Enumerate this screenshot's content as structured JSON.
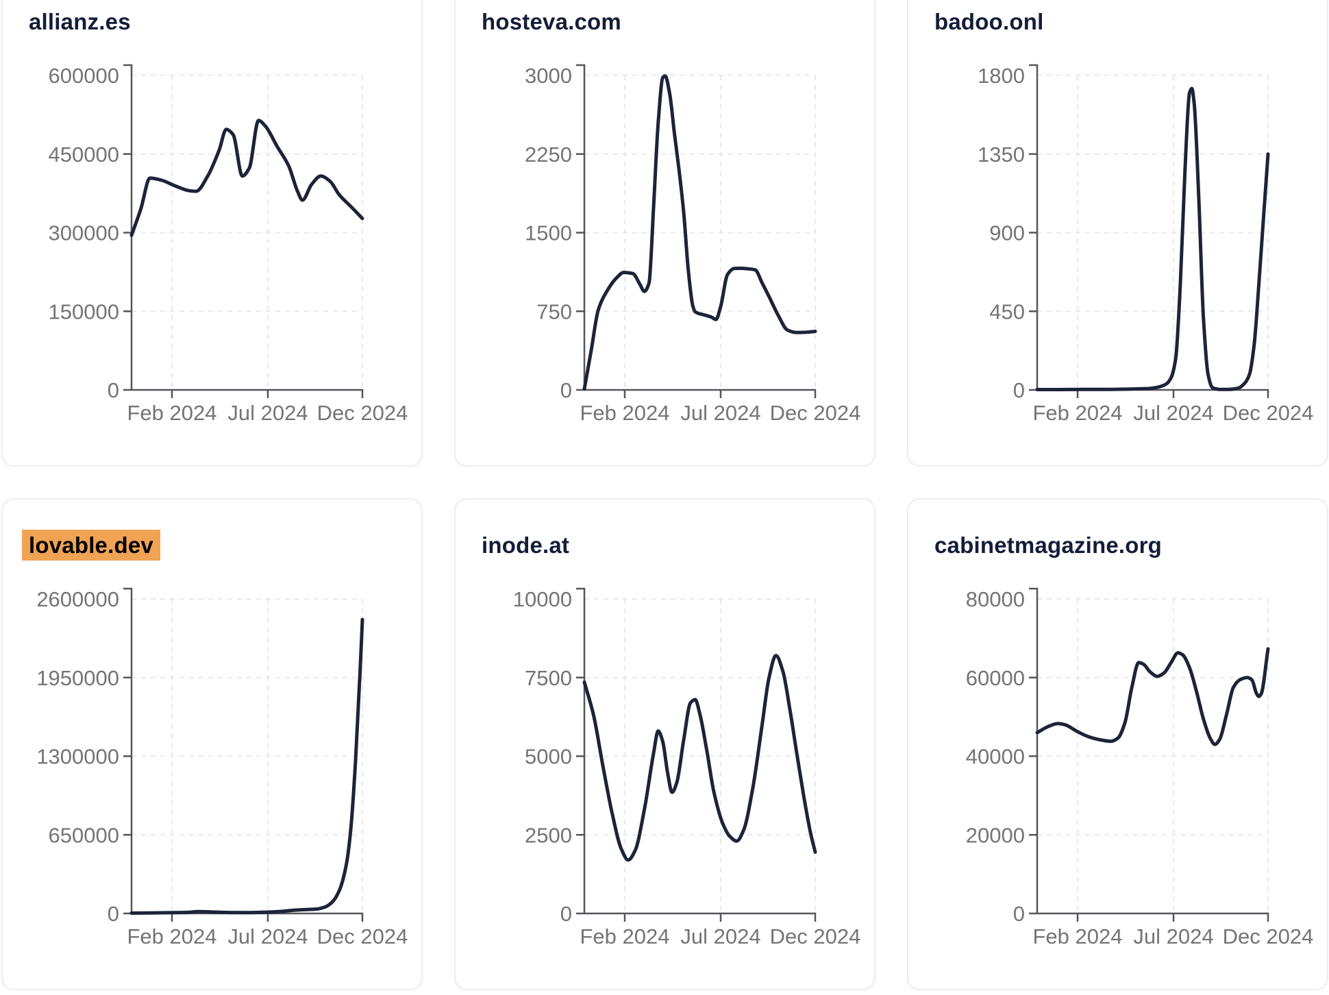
{
  "page": {
    "colors": {
      "background": "#ffffff",
      "line": "#1b2438",
      "axis": "#55555c",
      "grid": "#e8e8ee",
      "axis_label": "#747474",
      "title": "#141d38",
      "highlight": "#f0a353",
      "card_border": "#e9ecf4"
    }
  },
  "chart_data": [
    {
      "type": "line",
      "title": "allianz.es",
      "highlighted": false,
      "x_tick_labels": [
        "Feb 2024",
        "Jul 2024",
        "Dec 2024"
      ],
      "y_ticks": [
        600000,
        450000,
        300000,
        150000,
        0
      ],
      "ylim": [
        0,
        600000
      ],
      "grid": "dashed",
      "points": [
        [
          0,
          295000
        ],
        [
          4,
          345000
        ],
        [
          8,
          404000
        ],
        [
          13,
          400000
        ],
        [
          19,
          389000
        ],
        [
          25,
          380000
        ],
        [
          28,
          379000
        ],
        [
          33,
          408000
        ],
        [
          38,
          458000
        ],
        [
          41,
          497000
        ],
        [
          44,
          487000
        ],
        [
          48,
          408000
        ],
        [
          51,
          423000
        ],
        [
          55,
          514000
        ],
        [
          58,
          503000
        ],
        [
          63,
          465000
        ],
        [
          68,
          428000
        ],
        [
          72,
          378000
        ],
        [
          74,
          362000
        ],
        [
          78,
          392000
        ],
        [
          82,
          408000
        ],
        [
          86,
          398000
        ],
        [
          90,
          372000
        ],
        [
          95,
          350000
        ],
        [
          100,
          327000
        ]
      ]
    },
    {
      "type": "line",
      "title": "hosteva.com",
      "highlighted": false,
      "x_tick_labels": [
        "Feb 2024",
        "Jul 2024",
        "Dec 2024"
      ],
      "y_ticks": [
        3000,
        2250,
        1500,
        750,
        0
      ],
      "ylim": [
        0,
        3000
      ],
      "grid": "dashed",
      "points": [
        [
          0,
          10
        ],
        [
          3,
          380
        ],
        [
          6,
          760
        ],
        [
          10,
          950
        ],
        [
          14,
          1070
        ],
        [
          17,
          1120
        ],
        [
          21,
          1110
        ],
        [
          24,
          1010
        ],
        [
          26,
          940
        ],
        [
          28,
          1020
        ],
        [
          30,
          1750
        ],
        [
          32,
          2550
        ],
        [
          34,
          2980
        ],
        [
          35,
          2995
        ],
        [
          37,
          2820
        ],
        [
          39,
          2450
        ],
        [
          41,
          2100
        ],
        [
          43,
          1700
        ],
        [
          45,
          1150
        ],
        [
          47,
          800
        ],
        [
          48,
          745
        ],
        [
          52,
          715
        ],
        [
          55,
          695
        ],
        [
          57,
          672
        ],
        [
          59,
          790
        ],
        [
          62,
          1100
        ],
        [
          65,
          1158
        ],
        [
          68,
          1160
        ],
        [
          71,
          1155
        ],
        [
          74,
          1145
        ],
        [
          77,
          1020
        ],
        [
          80,
          890
        ],
        [
          84,
          710
        ],
        [
          88,
          570
        ],
        [
          92,
          548
        ],
        [
          96,
          550
        ],
        [
          100,
          558
        ]
      ]
    },
    {
      "type": "line",
      "title": "badoo.onl",
      "highlighted": false,
      "x_tick_labels": [
        "Feb 2024",
        "Jul 2024",
        "Dec 2024"
      ],
      "y_ticks": [
        1800,
        1350,
        900,
        450,
        0
      ],
      "ylim": [
        0,
        1800
      ],
      "grid": "dashed",
      "points": [
        [
          0,
          2
        ],
        [
          10,
          2
        ],
        [
          20,
          3
        ],
        [
          30,
          3
        ],
        [
          40,
          5
        ],
        [
          48,
          8
        ],
        [
          53,
          18
        ],
        [
          56,
          35
        ],
        [
          58,
          70
        ],
        [
          60,
          180
        ],
        [
          62,
          600
        ],
        [
          64,
          1250
        ],
        [
          66,
          1700
        ],
        [
          67,
          1725
        ],
        [
          68,
          1640
        ],
        [
          70,
          1100
        ],
        [
          72,
          420
        ],
        [
          74,
          90
        ],
        [
          76,
          12
        ],
        [
          79,
          3
        ],
        [
          83,
          3
        ],
        [
          87,
          10
        ],
        [
          90,
          40
        ],
        [
          92,
          90
        ],
        [
          94,
          260
        ],
        [
          96,
          600
        ],
        [
          98,
          980
        ],
        [
          100,
          1350
        ]
      ]
    },
    {
      "type": "line",
      "title": "lovable.dev",
      "highlighted": true,
      "x_tick_labels": [
        "Feb 2024",
        "Jul 2024",
        "Dec 2024"
      ],
      "y_ticks": [
        2600000,
        1950000,
        1300000,
        650000,
        0
      ],
      "ylim": [
        0,
        2600000
      ],
      "grid": "dashed",
      "points": [
        [
          0,
          3000
        ],
        [
          8,
          4000
        ],
        [
          16,
          6000
        ],
        [
          24,
          9000
        ],
        [
          29,
          16000
        ],
        [
          34,
          13000
        ],
        [
          42,
          8000
        ],
        [
          50,
          7000
        ],
        [
          58,
          11000
        ],
        [
          64,
          16000
        ],
        [
          70,
          26000
        ],
        [
          75,
          32000
        ],
        [
          80,
          36000
        ],
        [
          84,
          55000
        ],
        [
          87,
          95000
        ],
        [
          90,
          190000
        ],
        [
          93,
          400000
        ],
        [
          95,
          700000
        ],
        [
          97,
          1250000
        ],
        [
          99,
          2000000
        ],
        [
          100,
          2430000
        ]
      ]
    },
    {
      "type": "line",
      "title": "inode.at",
      "highlighted": false,
      "x_tick_labels": [
        "Feb 2024",
        "Jul 2024",
        "Dec 2024"
      ],
      "y_ticks": [
        10000,
        7500,
        5000,
        2500,
        0
      ],
      "ylim": [
        0,
        10000
      ],
      "grid": "dashed",
      "points": [
        [
          0,
          7350
        ],
        [
          4,
          6300
        ],
        [
          8,
          4700
        ],
        [
          12,
          3200
        ],
        [
          16,
          2050
        ],
        [
          19,
          1700
        ],
        [
          22,
          2000
        ],
        [
          26,
          3300
        ],
        [
          30,
          5100
        ],
        [
          32,
          5800
        ],
        [
          34,
          5450
        ],
        [
          36,
          4500
        ],
        [
          38,
          3850
        ],
        [
          40,
          4150
        ],
        [
          43,
          5500
        ],
        [
          46,
          6700
        ],
        [
          48,
          6800
        ],
        [
          50,
          6350
        ],
        [
          53,
          5200
        ],
        [
          56,
          3900
        ],
        [
          60,
          2850
        ],
        [
          63,
          2450
        ],
        [
          66,
          2300
        ],
        [
          69,
          2650
        ],
        [
          73,
          4000
        ],
        [
          77,
          6000
        ],
        [
          80,
          7500
        ],
        [
          83,
          8200
        ],
        [
          86,
          7700
        ],
        [
          89,
          6500
        ],
        [
          92,
          5100
        ],
        [
          95,
          3750
        ],
        [
          98,
          2550
        ],
        [
          100,
          1950
        ]
      ]
    },
    {
      "type": "line",
      "title": "cabinetmagazine.org",
      "highlighted": false,
      "x_tick_labels": [
        "Feb 2024",
        "Jul 2024",
        "Dec 2024"
      ],
      "y_ticks": [
        80000,
        60000,
        40000,
        20000,
        0
      ],
      "ylim": [
        0,
        80000
      ],
      "grid": "dashed",
      "points": [
        [
          0,
          46000
        ],
        [
          5,
          47600
        ],
        [
          9,
          48300
        ],
        [
          12,
          48000
        ],
        [
          17,
          46400
        ],
        [
          22,
          45000
        ],
        [
          27,
          44200
        ],
        [
          32,
          43800
        ],
        [
          35,
          44600
        ],
        [
          38,
          48500
        ],
        [
          41,
          57500
        ],
        [
          44,
          63800
        ],
        [
          46,
          63400
        ],
        [
          49,
          61400
        ],
        [
          52,
          60300
        ],
        [
          55,
          61200
        ],
        [
          58,
          63800
        ],
        [
          61,
          66300
        ],
        [
          63,
          65800
        ],
        [
          66,
          62500
        ],
        [
          69,
          56500
        ],
        [
          72,
          49500
        ],
        [
          75,
          44500
        ],
        [
          77,
          43000
        ],
        [
          79,
          44200
        ],
        [
          82,
          50500
        ],
        [
          85,
          57500
        ],
        [
          88,
          59500
        ],
        [
          91,
          60000
        ],
        [
          93,
          59400
        ],
        [
          95,
          56000
        ],
        [
          96,
          55200
        ],
        [
          97,
          55800
        ],
        [
          100,
          67300
        ]
      ]
    }
  ]
}
